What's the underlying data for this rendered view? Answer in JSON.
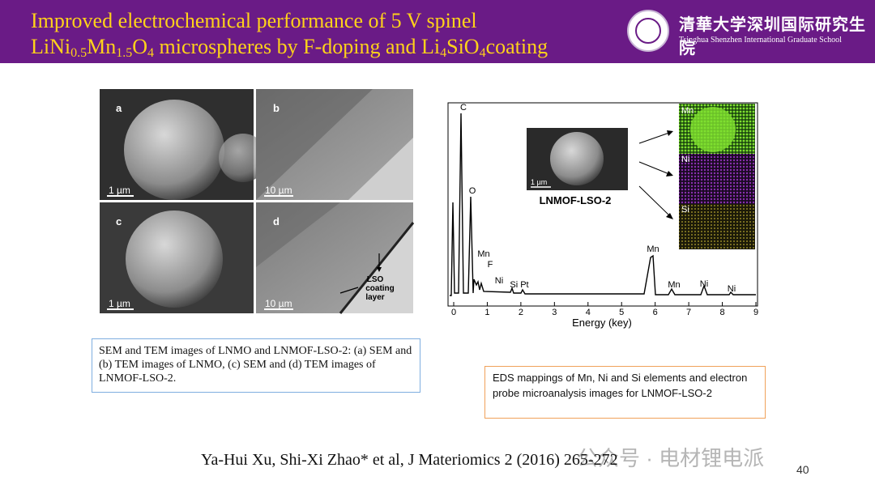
{
  "header": {
    "title_line1": "Improved electrochemical performance of 5 V spinel",
    "title_line2": [
      {
        "text": "LiNi"
      },
      {
        "text": "0.5",
        "sub": true
      },
      {
        "text": "Mn"
      },
      {
        "text": "1.5",
        "sub": true
      },
      {
        "text": "O"
      },
      {
        "text": "4",
        "sub": true
      },
      {
        "text": " microspheres by F-doping and Li"
      },
      {
        "text": "4",
        "sub": true
      },
      {
        "text": "SiO"
      },
      {
        "text": "4",
        "sub": true
      },
      {
        "text": "coating"
      }
    ],
    "logo_cn": "清華大学深圳国际研究生院",
    "logo_en": "Tsinghua Shenzhen International Graduate School"
  },
  "micrograph": {
    "panels": [
      {
        "letter": "a",
        "scale": "1 µm"
      },
      {
        "letter": "b",
        "scale": "10 µm"
      },
      {
        "letter": "c",
        "scale": "1 µm"
      },
      {
        "letter": "d",
        "scale": "10 µm"
      }
    ],
    "annotation": [
      "LSO",
      "coating",
      "layer"
    ],
    "caption": "SEM and TEM images of LNMO and LNMOF-LSO-2: (a) SEM and (b) TEM images of LNMO, (c) SEM and (d) TEM images of LNMOF-LSO-2."
  },
  "spectrum": {
    "xticks": [
      0,
      1,
      2,
      3,
      4,
      5,
      6,
      7,
      8,
      9
    ],
    "xlabel": "Energy (key)",
    "peaks": [
      "C",
      "O",
      "Mn",
      "F",
      "Ni",
      "Si Pt",
      "Mn",
      "Mn",
      "Ni",
      "Ni"
    ],
    "inset_label": "LNMOF-LSO-2",
    "inset_scale": "1 µm",
    "maps": [
      "Mn",
      "Ni",
      "Si"
    ],
    "caption": "EDS mappings of Mn, Ni and Si elements and electron probe microanalysis images for LNMOF-LSO-2"
  },
  "footer": {
    "citation": "Ya-Hui Xu, Shi-Xi Zhao* et al, J Materiomics 2 (2016) 265-272",
    "watermark": "公众号 · 电材锂电派",
    "page_number": "40"
  }
}
